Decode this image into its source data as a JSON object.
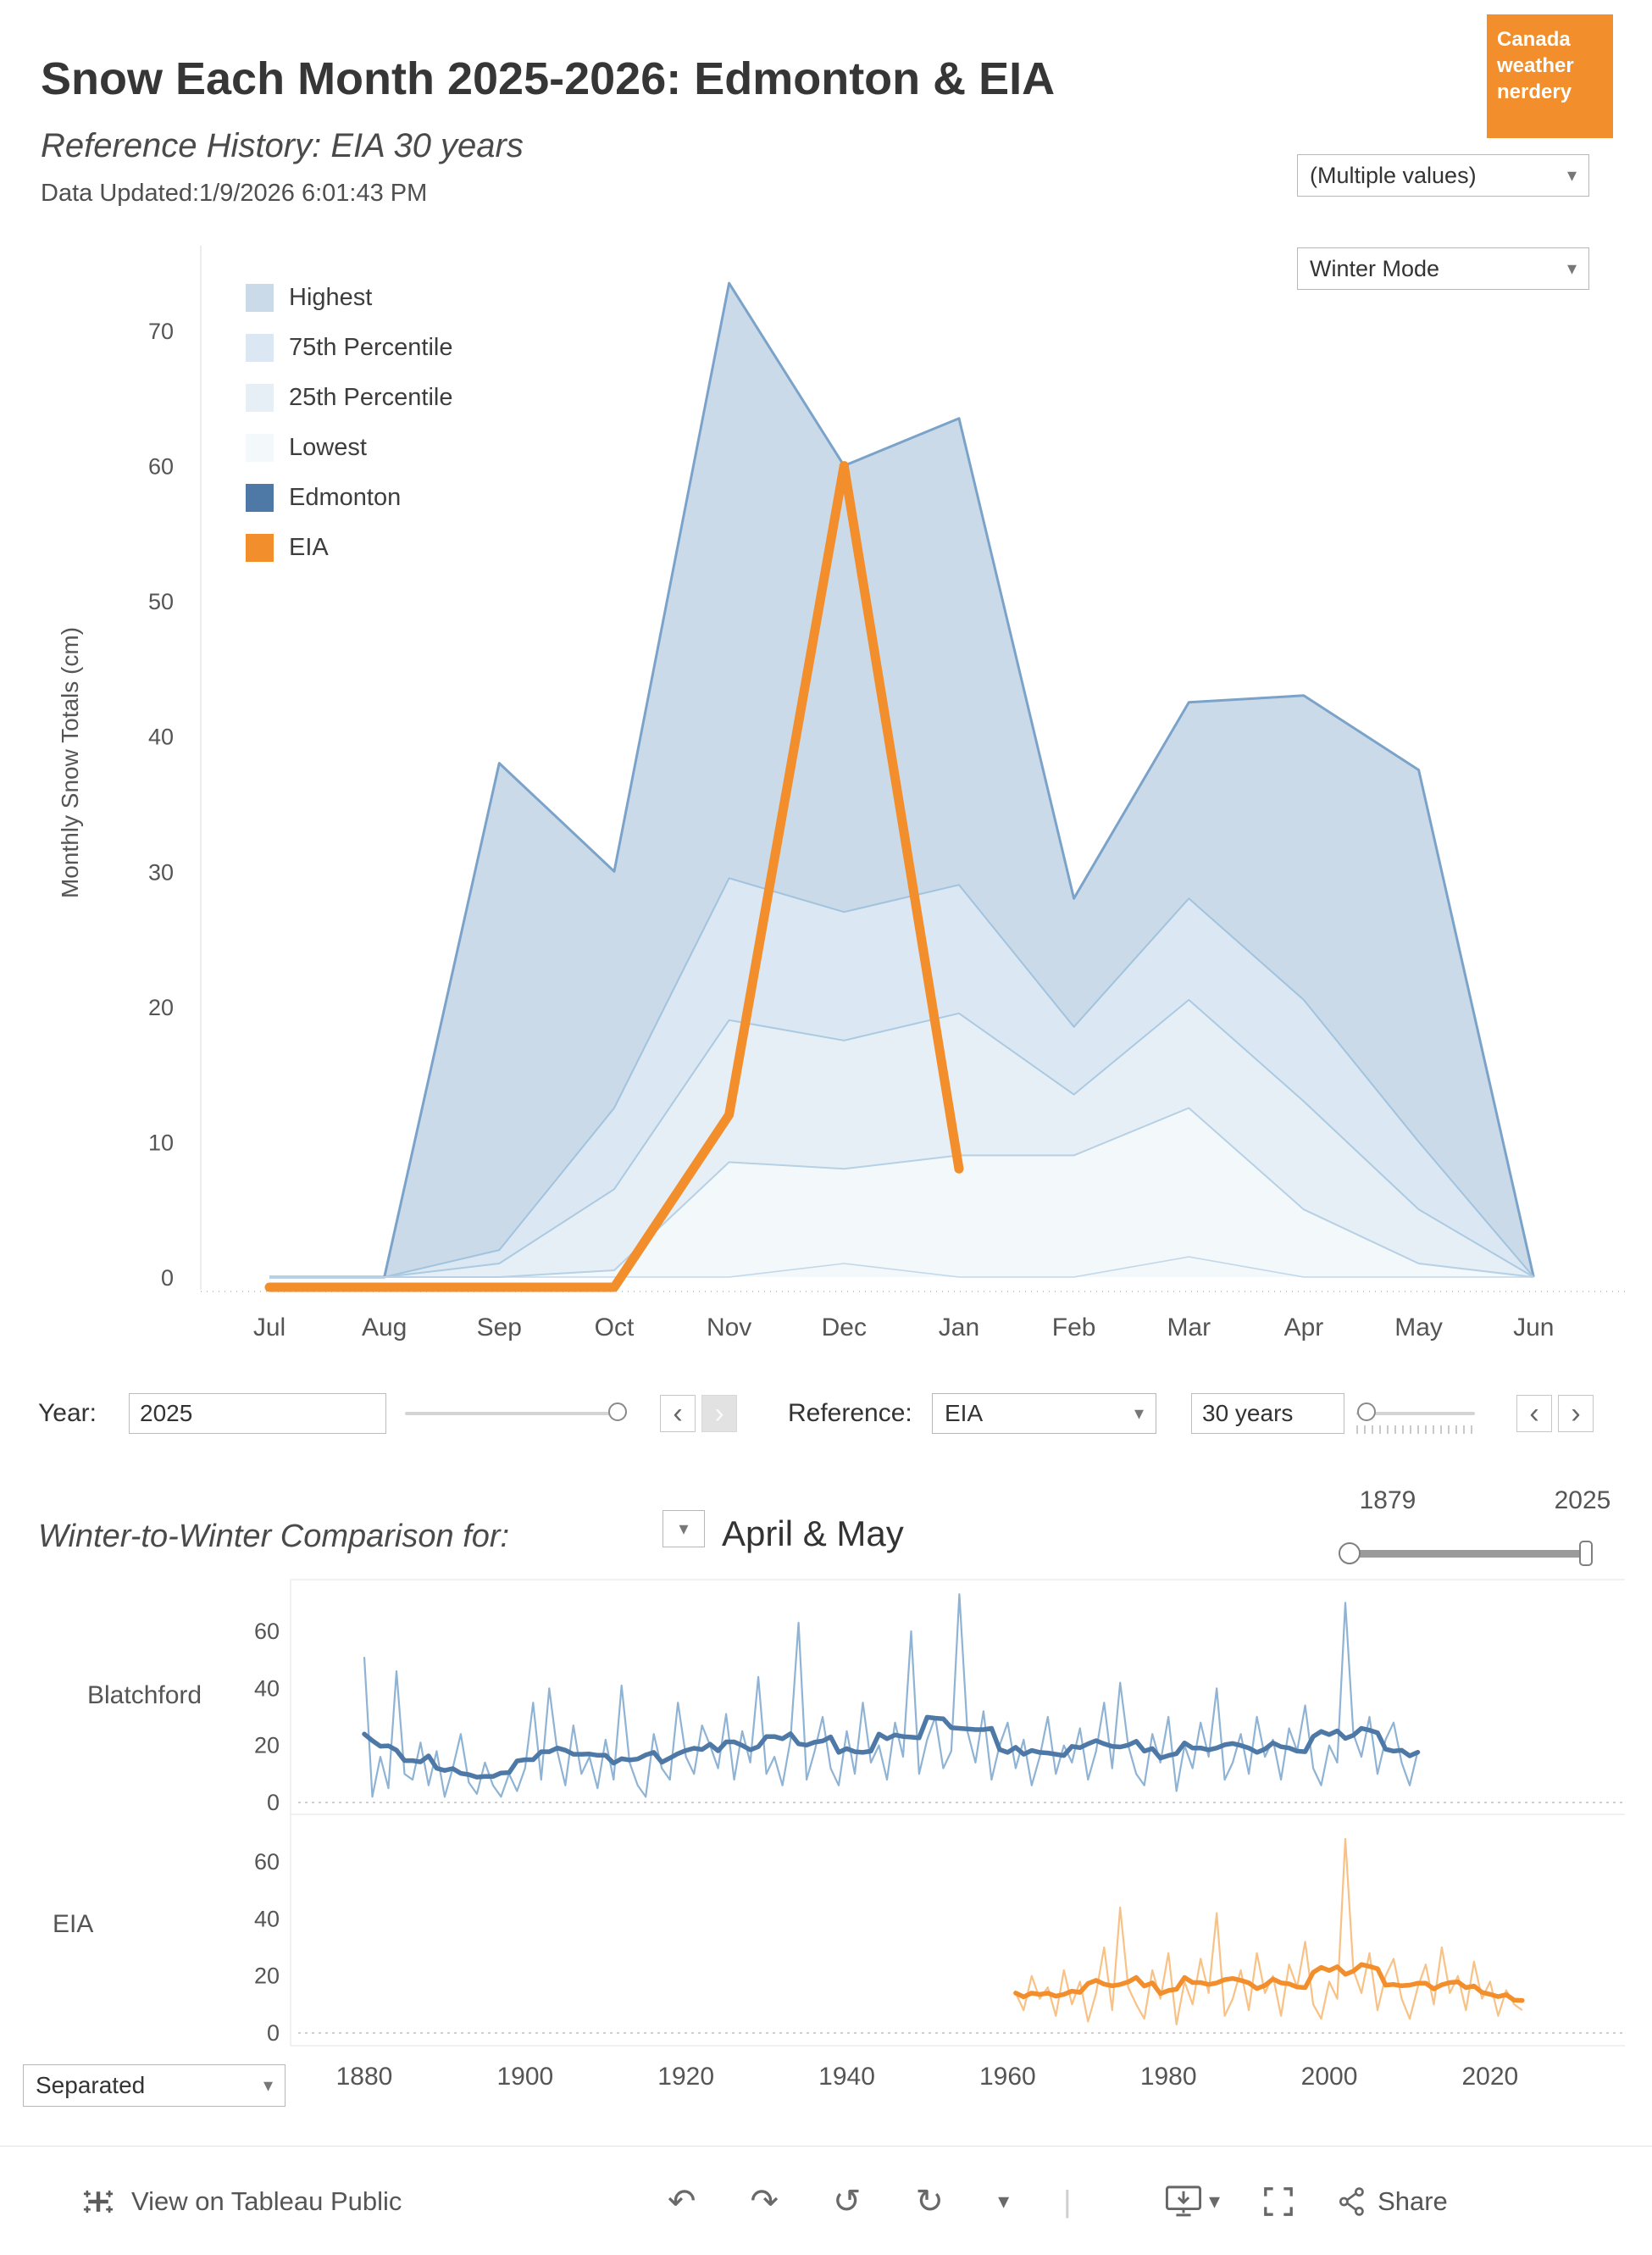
{
  "header": {
    "title": "Snow Each Month 2025-2026: Edmonton & EIA",
    "subtitle": "Reference History: EIA 30 years",
    "updated": "Data Updated:1/9/2026 6:01:43 PM",
    "logo_lines": [
      "Canada",
      "weather",
      "nerdery"
    ],
    "logo_color": "#f28e2b",
    "filter_value": "(Multiple values)",
    "mode_value": "Winter Mode"
  },
  "controls": {
    "year_label": "Year:",
    "year_value": "2025",
    "reference_label": "Reference:",
    "reference_value": "EIA",
    "years_value": "30 years"
  },
  "comparison": {
    "title": "Winter-to-Winter Comparison for:",
    "selection": "April & May",
    "range_start": "1879",
    "range_end": "2025",
    "separated_value": "Separated"
  },
  "toolbar": {
    "view_label": "View on Tableau Public",
    "share_label": "Share"
  },
  "icons": {
    "chevron_down": "▾",
    "chevron_left": "‹",
    "chevron_right": "›",
    "undo": "↶",
    "redo": "↷",
    "revert": "↺",
    "refresh": "↻",
    "separator": "|"
  },
  "colors": {
    "accent_orange": "#f28e2b",
    "edmonton_blue": "#4e79a7",
    "band_highest": "#cbdae9",
    "band_p75": "#dbe7f2",
    "band_p25": "#e7eff6",
    "band_lowest": "#f3f8fb"
  },
  "chart_data": [
    {
      "type": "area",
      "title": "Snow Each Month 2025-2026: Edmonton & EIA",
      "ylabel": "Monthly Snow Totals (cm)",
      "categories": [
        "Jul",
        "Aug",
        "Sep",
        "Oct",
        "Nov",
        "Dec",
        "Jan",
        "Feb",
        "Mar",
        "Apr",
        "May",
        "Jun"
      ],
      "ylim": [
        -2,
        76
      ],
      "yticks": [
        0,
        10,
        20,
        30,
        40,
        50,
        60,
        70
      ],
      "legend": [
        {
          "label": "Highest",
          "color": "#cbdae9"
        },
        {
          "label": "75th Percentile",
          "color": "#dbe7f2"
        },
        {
          "label": "25th Percentile",
          "color": "#e7eff6"
        },
        {
          "label": "Lowest",
          "color": "#f3f8fb"
        },
        {
          "label": "Edmonton",
          "color": "#4e79a7"
        },
        {
          "label": "EIA",
          "color": "#f28e2b"
        }
      ],
      "bands": {
        "highest": [
          0,
          0,
          38,
          30,
          73.5,
          60,
          63.5,
          28,
          42.5,
          43,
          37.5,
          0
        ],
        "p75": [
          0,
          0,
          2,
          12.5,
          29.5,
          27,
          29,
          18.5,
          28,
          20.5,
          10,
          0
        ],
        "p25": [
          0,
          0,
          1,
          6.5,
          19,
          17.5,
          19.5,
          13.5,
          20.5,
          13,
          5,
          0
        ],
        "lowest": [
          0,
          0,
          0,
          0.5,
          8.5,
          8,
          9,
          9,
          12.5,
          5,
          1,
          0
        ],
        "minimum": [
          0,
          0,
          0,
          0,
          0,
          1,
          0,
          0,
          1.5,
          0,
          0,
          0
        ]
      },
      "series": [
        {
          "name": "Edmonton",
          "color": "#4e79a7",
          "values": []
        },
        {
          "name": "EIA",
          "color": "#f28e2b",
          "values": [
            0,
            0,
            0,
            0,
            12,
            60,
            8
          ]
        }
      ]
    },
    {
      "type": "line",
      "label": "Blatchford",
      "start_year": 1880,
      "yticks": [
        0,
        20,
        40,
        60
      ],
      "xticks": [
        1880,
        1900,
        1920,
        1940,
        1960,
        1980,
        2000,
        2020
      ],
      "colors": {
        "annual": "#8fb3d4",
        "smoothed": "#4e79a7"
      },
      "annual": [
        51,
        2,
        16,
        5,
        46,
        10,
        8,
        21,
        6,
        18,
        2,
        12,
        24,
        7,
        3,
        14,
        6,
        2,
        10,
        4,
        12,
        35,
        8,
        40,
        18,
        6,
        27,
        10,
        16,
        5,
        22,
        8,
        41,
        14,
        6,
        2,
        24,
        12,
        8,
        35,
        16,
        10,
        27,
        20,
        12,
        31,
        8,
        25,
        14,
        44,
        10,
        16,
        6,
        22,
        63,
        8,
        18,
        30,
        12,
        6,
        25,
        10,
        35,
        14,
        20,
        8,
        28,
        16,
        60,
        10,
        22,
        30,
        12,
        18,
        73,
        25,
        14,
        32,
        8,
        20,
        28,
        12,
        22,
        6,
        16,
        30,
        10,
        20,
        14,
        26,
        8,
        18,
        35,
        12,
        42,
        20,
        10,
        6,
        24,
        14,
        30,
        4,
        20,
        12,
        28,
        16,
        40,
        8,
        14,
        24,
        10,
        30,
        16,
        22,
        8,
        26,
        18,
        34,
        12,
        6,
        20,
        14,
        70,
        24,
        16,
        30,
        10,
        22,
        28,
        14,
        6,
        18
      ]
    },
    {
      "type": "line",
      "label": "EIA",
      "start_year": 1961,
      "yticks": [
        0,
        20,
        40,
        60
      ],
      "xticks": [
        1880,
        1900,
        1920,
        1940,
        1960,
        1980,
        2000,
        2020
      ],
      "colors": {
        "annual": "#f8c185",
        "smoothed": "#f28e2b"
      },
      "annual": [
        14,
        8,
        20,
        12,
        16,
        6,
        22,
        10,
        18,
        4,
        14,
        30,
        8,
        44,
        16,
        10,
        5,
        22,
        12,
        28,
        3,
        18,
        10,
        26,
        14,
        42,
        6,
        12,
        22,
        8,
        28,
        14,
        20,
        6,
        24,
        16,
        32,
        10,
        5,
        18,
        12,
        68,
        22,
        14,
        28,
        8,
        20,
        26,
        12,
        5,
        16,
        24,
        10,
        30,
        14,
        20,
        8,
        25,
        12,
        18,
        6,
        15,
        10,
        8
      ]
    }
  ]
}
